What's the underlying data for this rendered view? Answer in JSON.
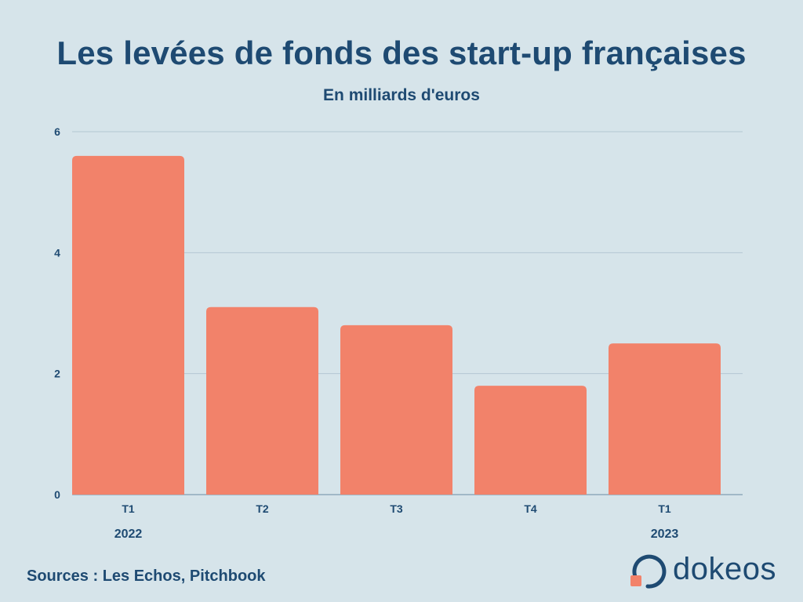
{
  "chart_data": {
    "type": "bar",
    "title": "Les levées de fonds des start-up françaises",
    "subtitle": "En milliards d'euros",
    "categories": [
      "T1",
      "T2",
      "T3",
      "T4",
      "T1"
    ],
    "year_labels": [
      {
        "category_index": 0,
        "label": "2022"
      },
      {
        "category_index": 4,
        "label": "2023"
      }
    ],
    "values": [
      5.6,
      3.1,
      2.8,
      1.8,
      2.5
    ],
    "ylim": [
      0,
      6
    ],
    "yticks": [
      "0",
      "2",
      "4",
      "6"
    ],
    "grid": true,
    "xlabel": "",
    "ylabel": "",
    "bar_color": "#f2826a"
  },
  "footer": {
    "source": "Sources : Les Echos, Pitchbook"
  },
  "logo": {
    "text": "dokeos",
    "icon": "dokeos-logo-icon",
    "ring_color": "#1e4a72",
    "square_color": "#f2826a"
  }
}
